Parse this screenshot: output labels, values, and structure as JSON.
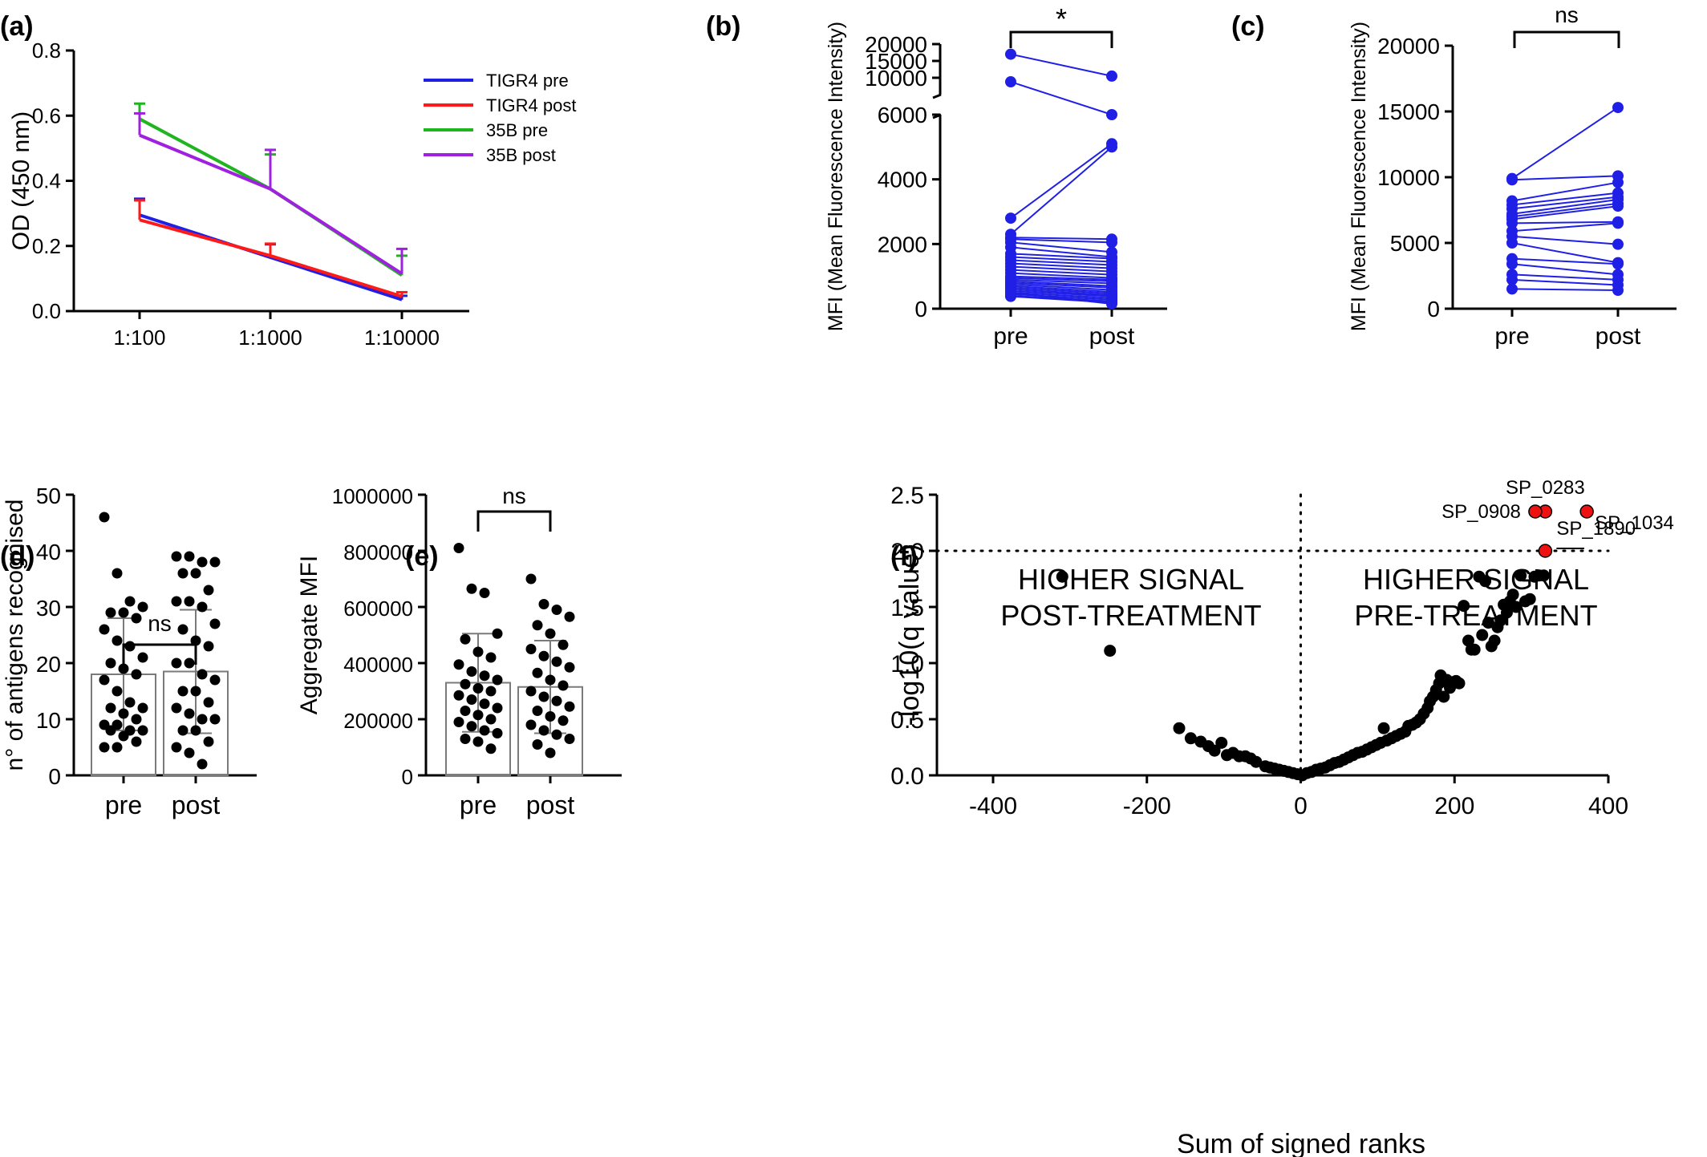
{
  "colors": {
    "blue": "#1f1fe6",
    "red": "#ff1a1a",
    "green": "#1fb51f",
    "purple": "#a020e0",
    "black": "#000000",
    "volcano_sig": "#ee1111",
    "bar_edge": "#7a7a7a"
  },
  "chart_data": [
    {
      "panel": "(a)",
      "type": "line",
      "categories": [
        "1:100",
        "1:1000",
        "1:10000"
      ],
      "ylabel": "OD (450 nm)",
      "xlabel": "",
      "ylim": [
        0,
        0.8
      ],
      "yticks": [
        "0.0",
        "0.2",
        "0.4",
        "0.6",
        "0.8"
      ],
      "legend": "top-right",
      "series": [
        {
          "name": "TIGR4 pre",
          "values": [
            0.295,
            0.165,
            0.035
          ],
          "error": [
            0.05,
            0.04,
            0.012
          ]
        },
        {
          "name": "TIGR4 post",
          "values": [
            0.28,
            0.17,
            0.045
          ],
          "error": [
            0.06,
            0.037,
            0.013
          ]
        },
        {
          "name": "35B pre",
          "values": [
            0.59,
            0.375,
            0.11
          ],
          "error": [
            0.047,
            0.106,
            0.06
          ]
        },
        {
          "name": "35B post",
          "values": [
            0.54,
            0.375,
            0.115
          ],
          "error": [
            0.067,
            0.12,
            0.076
          ]
        }
      ]
    },
    {
      "panel": "(b)",
      "type": "line",
      "paired": true,
      "categories": [
        "pre",
        "post"
      ],
      "ylabel": "MFI (Mean Fluorescence Intensity)",
      "significance": "*",
      "yticks_lower": [
        "0",
        "2000",
        "4000",
        "6000"
      ],
      "yticks_upper": [
        "10000",
        "15000",
        "20000"
      ],
      "pairs": [
        [
          17000,
          10500
        ],
        [
          8800,
          6000
        ],
        [
          2800,
          5100
        ],
        [
          2300,
          5000
        ],
        [
          2200,
          2150
        ],
        [
          2150,
          2050
        ],
        [
          2050,
          1750
        ],
        [
          1900,
          1600
        ],
        [
          1700,
          1550
        ],
        [
          1600,
          1450
        ],
        [
          1500,
          1350
        ],
        [
          1400,
          1250
        ],
        [
          1300,
          1150
        ],
        [
          1200,
          1050
        ],
        [
          1100,
          950
        ],
        [
          1000,
          900
        ],
        [
          950,
          850
        ],
        [
          900,
          780
        ],
        [
          850,
          700
        ],
        [
          800,
          650
        ],
        [
          750,
          580
        ],
        [
          700,
          520
        ],
        [
          650,
          470
        ],
        [
          600,
          420
        ],
        [
          550,
          380
        ],
        [
          500,
          330
        ],
        [
          450,
          280
        ],
        [
          400,
          230
        ],
        [
          380,
          190
        ],
        [
          500,
          150
        ]
      ]
    },
    {
      "panel": "(c)",
      "type": "line",
      "paired": true,
      "categories": [
        "pre",
        "post"
      ],
      "ylabel": "MFI (Mean Fluorescence Intensity)",
      "significance": "ns",
      "ylim": [
        0,
        20000
      ],
      "yticks": [
        "0",
        "5000",
        "10000",
        "15000",
        "20000"
      ],
      "pairs": [
        [
          9900,
          15300
        ],
        [
          9800,
          10100
        ],
        [
          8200,
          9600
        ],
        [
          7900,
          8800
        ],
        [
          7600,
          8500
        ],
        [
          7200,
          8300
        ],
        [
          7000,
          8000
        ],
        [
          6800,
          7800
        ],
        [
          6500,
          6600
        ],
        [
          5900,
          6500
        ],
        [
          5500,
          4900
        ],
        [
          5000,
          3500
        ],
        [
          3800,
          3400
        ],
        [
          3400,
          2600
        ],
        [
          2600,
          2200
        ],
        [
          2200,
          1800
        ],
        [
          1500,
          1400
        ]
      ]
    },
    {
      "panel": "(d)",
      "type": "bar",
      "categories": [
        "pre",
        "post"
      ],
      "values": [
        18,
        18.5
      ],
      "sd": [
        10,
        11
      ],
      "ylabel": "n° of antigens recognised",
      "significance": "ns",
      "ylim": [
        0,
        50
      ],
      "yticks": [
        "0",
        "10",
        "20",
        "30",
        "40",
        "50"
      ],
      "points": [
        [
          46,
          36,
          31,
          30,
          29,
          29,
          28,
          26,
          24,
          23,
          21,
          20,
          19,
          18,
          17,
          15,
          13,
          12,
          12,
          11,
          10,
          9,
          9,
          8,
          8,
          8,
          7,
          6,
          5,
          5
        ],
        [
          39,
          39,
          38,
          38,
          36,
          36,
          33,
          31,
          31,
          30,
          27,
          26,
          24,
          23,
          20,
          20,
          18,
          17,
          15,
          15,
          13,
          12,
          11,
          10,
          10,
          8,
          8,
          6,
          5,
          4,
          2
        ]
      ]
    },
    {
      "panel": "(e)",
      "type": "bar",
      "categories": [
        "pre",
        "post"
      ],
      "values": [
        330000,
        315000
      ],
      "sd": [
        175000,
        165000
      ],
      "ylabel": "Aggregate MFI",
      "significance": "ns",
      "ylim": [
        0,
        1000000
      ],
      "yticks": [
        "0",
        "200000",
        "400000",
        "600000",
        "800000",
        "1000000"
      ],
      "points": [
        [
          810000,
          665000,
          650000,
          505000,
          485000,
          440000,
          420000,
          395000,
          370000,
          355000,
          340000,
          325000,
          310000,
          300000,
          285000,
          270000,
          255000,
          240000,
          230000,
          215000,
          200000,
          190000,
          175000,
          160000,
          150000,
          130000,
          120000,
          95000
        ],
        [
          700000,
          610000,
          590000,
          565000,
          535000,
          505000,
          465000,
          450000,
          425000,
          405000,
          385000,
          365000,
          340000,
          320000,
          300000,
          280000,
          265000,
          245000,
          230000,
          210000,
          195000,
          180000,
          160000,
          145000,
          130000,
          110000,
          80000
        ]
      ]
    },
    {
      "panel": "(f)",
      "type": "scatter",
      "xlabel": "Sum of signed ranks",
      "ylabel": "-log10(q value)",
      "xlim": [
        -400,
        400
      ],
      "ylim": [
        0,
        2.5
      ],
      "xticks": [
        "-400",
        "-200",
        "0",
        "200",
        "400"
      ],
      "yticks": [
        "0.0",
        "0.5",
        "1.0",
        "1.5",
        "2.0",
        "2.5"
      ],
      "threshold_y": 2.0,
      "threshold_x": 0,
      "left_header": [
        "HIGHER SIGNAL",
        "POST-TREATMENT"
      ],
      "right_header": [
        "HIGHER SIGNAL",
        "PRE-TREATMENT"
      ],
      "labelled": [
        {
          "label": "SP_0283",
          "x": 318,
          "y": 2.35
        },
        {
          "label": "SP_0908",
          "x": 305,
          "y": 2.35
        },
        {
          "label": "SP_1034",
          "x": 372,
          "y": 2.35
        },
        {
          "label": "SP_1890",
          "x": 318,
          "y": 2.0
        }
      ],
      "points": [
        [
          -310,
          1.77
        ],
        [
          -248,
          1.11
        ],
        [
          -158,
          0.42
        ],
        [
          -143,
          0.33
        ],
        [
          -130,
          0.3
        ],
        [
          -120,
          0.26
        ],
        [
          -112,
          0.22
        ],
        [
          -103,
          0.29
        ],
        [
          -96,
          0.18
        ],
        [
          -88,
          0.2
        ],
        [
          -80,
          0.17
        ],
        [
          -72,
          0.17
        ],
        [
          -65,
          0.15
        ],
        [
          -58,
          0.12
        ],
        [
          -46,
          0.08
        ],
        [
          -40,
          0.07
        ],
        [
          -34,
          0.06
        ],
        [
          -28,
          0.05
        ],
        [
          -22,
          0.04
        ],
        [
          -16,
          0.03
        ],
        [
          -10,
          0.02
        ],
        [
          -4,
          0.01
        ],
        [
          2,
          0.0
        ],
        [
          8,
          0.02
        ],
        [
          14,
          0.03
        ],
        [
          20,
          0.05
        ],
        [
          26,
          0.06
        ],
        [
          32,
          0.07
        ],
        [
          38,
          0.09
        ],
        [
          44,
          0.11
        ],
        [
          50,
          0.12
        ],
        [
          56,
          0.14
        ],
        [
          62,
          0.16
        ],
        [
          68,
          0.18
        ],
        [
          74,
          0.2
        ],
        [
          80,
          0.21
        ],
        [
          86,
          0.23
        ],
        [
          92,
          0.25
        ],
        [
          98,
          0.27
        ],
        [
          104,
          0.29
        ],
        [
          108,
          0.42
        ],
        [
          112,
          0.31
        ],
        [
          118,
          0.33
        ],
        [
          124,
          0.35
        ],
        [
          130,
          0.37
        ],
        [
          136,
          0.39
        ],
        [
          140,
          0.44
        ],
        [
          145,
          0.45
        ],
        [
          150,
          0.47
        ],
        [
          155,
          0.5
        ],
        [
          160,
          0.55
        ],
        [
          165,
          0.6
        ],
        [
          168,
          0.66
        ],
        [
          172,
          0.7
        ],
        [
          176,
          0.76
        ],
        [
          180,
          0.82
        ],
        [
          182,
          0.89
        ],
        [
          186,
          0.7
        ],
        [
          190,
          0.85
        ],
        [
          194,
          0.78
        ],
        [
          198,
          0.83
        ],
        [
          202,
          0.84
        ],
        [
          206,
          0.82
        ],
        [
          212,
          1.51
        ],
        [
          218,
          1.2
        ],
        [
          222,
          1.12
        ],
        [
          226,
          1.12
        ],
        [
          232,
          1.77
        ],
        [
          236,
          1.25
        ],
        [
          240,
          1.73
        ],
        [
          244,
          1.36
        ],
        [
          248,
          1.15
        ],
        [
          252,
          1.2
        ],
        [
          256,
          1.32
        ],
        [
          260,
          1.38
        ],
        [
          264,
          1.52
        ],
        [
          268,
          1.45
        ],
        [
          272,
          1.55
        ],
        [
          276,
          1.61
        ],
        [
          280,
          1.5
        ],
        [
          286,
          1.78
        ],
        [
          292,
          1.55
        ],
        [
          298,
          1.57
        ],
        [
          304,
          1.77
        ],
        [
          310,
          1.78
        ],
        [
          316,
          1.78
        ]
      ]
    }
  ]
}
